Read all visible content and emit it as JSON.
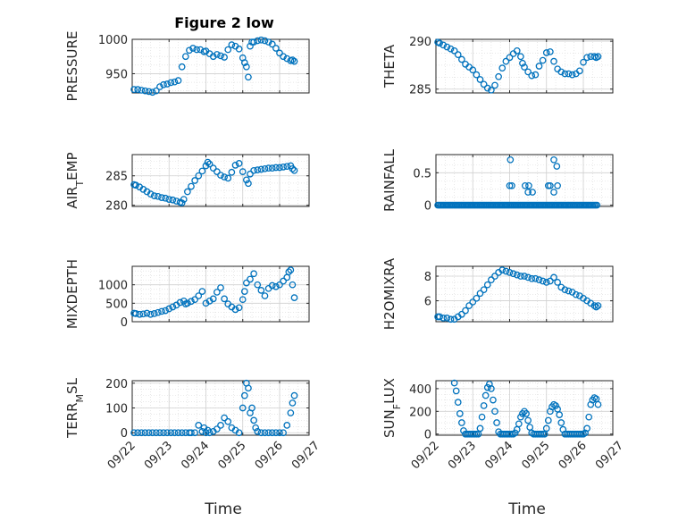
{
  "figure_title": "Figure 2 low",
  "marker_color": "#0072BD",
  "chart_data": [
    {
      "type": "scatter",
      "ylabel": "PRESSURE",
      "title": "Figure 2 low",
      "ylim": [
        922,
        1000
      ],
      "yticks": [
        950,
        1000
      ],
      "ytick_labels": [
        "950",
        "1000"
      ],
      "xlim": [
        0,
        4.8
      ],
      "x_unit": "days since 09/22 (tick dates shown only on bottom row)",
      "grid": "on (major + minor dotted)",
      "x": [
        0.05,
        0.15,
        0.25,
        0.35,
        0.45,
        0.55,
        0.65,
        0.75,
        0.85,
        0.95,
        1.05,
        1.15,
        1.25,
        1.35,
        1.45,
        1.55,
        1.65,
        1.75,
        1.85,
        1.95,
        2.0,
        2.1,
        2.2,
        2.3,
        2.4,
        2.5,
        2.6,
        2.7,
        2.8,
        2.9,
        3.0,
        3.05,
        3.1,
        3.15,
        3.2,
        3.25,
        3.3,
        3.4,
        3.5,
        3.6,
        3.7,
        3.8,
        3.9,
        4.0,
        4.1,
        4.2,
        4.3,
        4.35,
        4.4
      ],
      "y": [
        927,
        927,
        926,
        925,
        924,
        923,
        925,
        931,
        934,
        935,
        937,
        938,
        940,
        960,
        975,
        984,
        987,
        985,
        985,
        982,
        983,
        979,
        975,
        978,
        976,
        974,
        985,
        992,
        990,
        986,
        973,
        966,
        960,
        945,
        990,
        996,
        996,
        998,
        999,
        998,
        996,
        993,
        987,
        980,
        975,
        972,
        969,
        970,
        968
      ]
    },
    {
      "type": "scatter",
      "ylabel": "THETA",
      "ylim": [
        284.6,
        290.2
      ],
      "yticks": [
        285,
        290
      ],
      "ytick_labels": [
        "285",
        "290"
      ],
      "xlim": [
        0,
        4.8
      ],
      "x": [
        0.05,
        0.1,
        0.2,
        0.3,
        0.4,
        0.5,
        0.6,
        0.7,
        0.8,
        0.9,
        1.0,
        1.1,
        1.2,
        1.3,
        1.4,
        1.5,
        1.6,
        1.7,
        1.8,
        1.9,
        2.0,
        2.1,
        2.2,
        2.3,
        2.35,
        2.4,
        2.5,
        2.6,
        2.7,
        2.8,
        2.9,
        3.0,
        3.1,
        3.2,
        3.3,
        3.4,
        3.5,
        3.6,
        3.7,
        3.8,
        3.9,
        4.0,
        4.1,
        4.2,
        4.3,
        4.35,
        4.4
      ],
      "y": [
        289.9,
        289.8,
        289.6,
        289.4,
        289.2,
        289.0,
        288.6,
        288.1,
        287.6,
        287.3,
        287.0,
        286.5,
        286.0,
        285.5,
        285.1,
        284.9,
        285.4,
        286.3,
        287.2,
        287.9,
        288.3,
        288.7,
        289.0,
        288.4,
        287.7,
        287.3,
        286.8,
        286.4,
        286.5,
        287.4,
        288.0,
        288.8,
        288.9,
        287.9,
        287.1,
        286.8,
        286.6,
        286.6,
        286.5,
        286.6,
        286.9,
        287.8,
        288.3,
        288.4,
        288.4,
        288.3,
        288.4
      ]
    },
    {
      "type": "scatter",
      "ylabel": "AIR_TEMP",
      "ylim": [
        279.8,
        288.6
      ],
      "yticks": [
        280,
        285
      ],
      "ytick_labels": [
        "280",
        "285"
      ],
      "xlim": [
        0,
        4.8
      ],
      "x": [
        0.05,
        0.1,
        0.2,
        0.3,
        0.4,
        0.5,
        0.6,
        0.7,
        0.8,
        0.9,
        1.0,
        1.1,
        1.2,
        1.3,
        1.35,
        1.4,
        1.5,
        1.6,
        1.7,
        1.8,
        1.9,
        2.0,
        2.05,
        2.1,
        2.2,
        2.3,
        2.4,
        2.5,
        2.6,
        2.7,
        2.8,
        2.9,
        3.0,
        3.1,
        3.15,
        3.2,
        3.3,
        3.4,
        3.5,
        3.6,
        3.7,
        3.8,
        3.9,
        4.0,
        4.1,
        4.2,
        4.3,
        4.35,
        4.4
      ],
      "y": [
        283.5,
        283.4,
        283.1,
        282.7,
        282.3,
        281.9,
        281.6,
        281.5,
        281.3,
        281.2,
        281.0,
        280.9,
        280.7,
        280.5,
        280.4,
        281.0,
        282.3,
        283.2,
        284.2,
        285.0,
        285.8,
        286.7,
        287.3,
        287.0,
        286.3,
        285.7,
        285.1,
        284.8,
        284.6,
        285.6,
        286.8,
        287.1,
        285.7,
        284.3,
        283.7,
        285.3,
        285.9,
        286.0,
        286.1,
        286.2,
        286.3,
        286.3,
        286.4,
        286.4,
        286.5,
        286.6,
        286.7,
        286.2,
        285.9
      ]
    },
    {
      "type": "scatter",
      "ylabel": "RAINFALL",
      "ylim": [
        -0.02,
        0.78
      ],
      "yticks": [
        0,
        0.5
      ],
      "ytick_labels": [
        "0",
        "0.5"
      ],
      "xlim": [
        0,
        4.8
      ],
      "x_zero_range": [
        0.05,
        4.4
      ],
      "nonzero": [
        {
          "x": 2.02,
          "y": 0.7
        },
        {
          "x": 2.0,
          "y": 0.3
        },
        {
          "x": 2.06,
          "y": 0.3
        },
        {
          "x": 2.42,
          "y": 0.3
        },
        {
          "x": 2.5,
          "y": 0.2
        },
        {
          "x": 2.52,
          "y": 0.3
        },
        {
          "x": 2.62,
          "y": 0.2
        },
        {
          "x": 3.05,
          "y": 0.3
        },
        {
          "x": 3.1,
          "y": 0.3
        },
        {
          "x": 3.2,
          "y": 0.7
        },
        {
          "x": 3.28,
          "y": 0.6
        },
        {
          "x": 3.3,
          "y": 0.3
        },
        {
          "x": 3.2,
          "y": 0.2
        }
      ]
    },
    {
      "type": "scatter",
      "ylabel": "MIXDEPTH",
      "ylim": [
        0,
        1500
      ],
      "yticks": [
        0,
        500,
        1000
      ],
      "ytick_labels": [
        "0",
        "500",
        "1000"
      ],
      "xlim": [
        0,
        4.8
      ],
      "x": [
        0.05,
        0.1,
        0.2,
        0.3,
        0.4,
        0.5,
        0.6,
        0.7,
        0.8,
        0.9,
        1.0,
        1.1,
        1.2,
        1.3,
        1.4,
        1.45,
        1.5,
        1.6,
        1.7,
        1.8,
        1.9,
        2.0,
        2.1,
        2.2,
        2.3,
        2.4,
        2.5,
        2.6,
        2.7,
        2.8,
        2.9,
        3.0,
        3.05,
        3.1,
        3.2,
        3.3,
        3.4,
        3.5,
        3.6,
        3.7,
        3.8,
        3.9,
        4.0,
        4.1,
        4.2,
        4.25,
        4.3,
        4.35,
        4.4
      ],
      "y": [
        230,
        220,
        200,
        210,
        230,
        200,
        220,
        250,
        280,
        300,
        350,
        400,
        450,
        520,
        560,
        480,
        500,
        550,
        600,
        700,
        820,
        500,
        560,
        620,
        800,
        920,
        620,
        480,
        400,
        330,
        380,
        600,
        820,
        1050,
        1150,
        1300,
        1000,
        850,
        700,
        900,
        980,
        950,
        1000,
        1100,
        1200,
        1350,
        1400,
        1000,
        650
      ]
    },
    {
      "type": "scatter",
      "ylabel": "H2OMIXRA",
      "ylim": [
        4.3,
        8.8
      ],
      "yticks": [
        6,
        8
      ],
      "ytick_labels": [
        "6",
        "8"
      ],
      "xlim": [
        0,
        4.8
      ],
      "x": [
        0.05,
        0.1,
        0.2,
        0.3,
        0.4,
        0.5,
        0.6,
        0.7,
        0.8,
        0.9,
        1.0,
        1.1,
        1.2,
        1.3,
        1.4,
        1.5,
        1.6,
        1.7,
        1.8,
        1.9,
        2.0,
        2.1,
        2.2,
        2.3,
        2.4,
        2.5,
        2.6,
        2.7,
        2.8,
        2.9,
        3.0,
        3.1,
        3.2,
        3.3,
        3.4,
        3.5,
        3.6,
        3.7,
        3.8,
        3.9,
        4.0,
        4.1,
        4.2,
        4.3,
        4.35,
        4.4
      ],
      "y": [
        4.7,
        4.7,
        4.6,
        4.6,
        4.5,
        4.5,
        4.7,
        4.9,
        5.2,
        5.6,
        5.9,
        6.2,
        6.6,
        6.9,
        7.3,
        7.7,
        8.0,
        8.3,
        8.5,
        8.4,
        8.3,
        8.2,
        8.1,
        8.0,
        8.0,
        7.9,
        7.8,
        7.8,
        7.7,
        7.6,
        7.5,
        7.6,
        7.9,
        7.5,
        7.1,
        6.9,
        6.8,
        6.7,
        6.5,
        6.4,
        6.2,
        6.0,
        5.8,
        5.6,
        5.5,
        5.6
      ]
    },
    {
      "type": "scatter",
      "ylabel": "TERR_MSL",
      "ylim": [
        -10,
        210
      ],
      "yticks": [
        0,
        100,
        200
      ],
      "ytick_labels": [
        "0",
        "100",
        "200"
      ],
      "xlim": [
        0,
        4.8
      ],
      "x": [
        0.05,
        0.15,
        0.25,
        0.35,
        0.45,
        0.55,
        0.65,
        0.75,
        0.85,
        0.95,
        1.05,
        1.15,
        1.25,
        1.35,
        1.45,
        1.55,
        1.6,
        1.7,
        1.8,
        1.9,
        1.95,
        2.0,
        2.05,
        2.1,
        2.2,
        2.3,
        2.4,
        2.5,
        2.6,
        2.7,
        2.8,
        2.9,
        3.0,
        3.05,
        3.1,
        3.15,
        3.2,
        3.25,
        3.3,
        3.35,
        3.4,
        3.5,
        3.6,
        3.7,
        3.8,
        3.9,
        4.0,
        4.1,
        4.2,
        4.3,
        4.35,
        4.4
      ],
      "y": [
        0,
        0,
        0,
        0,
        0,
        0,
        0,
        0,
        0,
        0,
        0,
        0,
        0,
        0,
        0,
        0,
        0,
        0,
        30,
        5,
        20,
        0,
        10,
        0,
        5,
        15,
        30,
        60,
        45,
        20,
        10,
        0,
        100,
        150,
        200,
        180,
        80,
        100,
        50,
        20,
        5,
        0,
        0,
        0,
        0,
        0,
        0,
        0,
        30,
        80,
        120,
        150
      ]
    },
    {
      "type": "scatter",
      "ylabel": "SUN_FLUX",
      "ylim": [
        -10,
        470
      ],
      "yticks": [
        0,
        200,
        400
      ],
      "ytick_labels": [
        "0",
        "200",
        "400"
      ],
      "xlim": [
        0,
        4.8
      ],
      "x": [
        0.5,
        0.55,
        0.6,
        0.65,
        0.7,
        0.75,
        0.8,
        0.85,
        0.9,
        0.95,
        1.0,
        1.05,
        1.1,
        1.15,
        1.2,
        1.25,
        1.3,
        1.35,
        1.4,
        1.45,
        1.5,
        1.55,
        1.6,
        1.65,
        1.7,
        1.75,
        1.8,
        1.85,
        1.9,
        1.95,
        2.0,
        2.05,
        2.1,
        2.15,
        2.2,
        2.25,
        2.3,
        2.35,
        2.4,
        2.45,
        2.5,
        2.55,
        2.6,
        2.65,
        2.7,
        2.75,
        2.8,
        2.85,
        2.9,
        2.95,
        3.0,
        3.05,
        3.1,
        3.15,
        3.2,
        3.25,
        3.3,
        3.35,
        3.4,
        3.45,
        3.5,
        3.55,
        3.6,
        3.65,
        3.7,
        3.75,
        3.8,
        3.85,
        3.9,
        3.95,
        4.0,
        4.05,
        4.1,
        4.15,
        4.2,
        4.25,
        4.3,
        4.35,
        4.4
      ],
      "y": [
        450,
        380,
        280,
        180,
        100,
        30,
        0,
        0,
        0,
        0,
        0,
        0,
        0,
        0,
        50,
        150,
        250,
        340,
        410,
        440,
        400,
        300,
        200,
        100,
        20,
        0,
        0,
        0,
        0,
        0,
        0,
        0,
        0,
        10,
        40,
        90,
        150,
        180,
        200,
        180,
        120,
        60,
        10,
        0,
        0,
        0,
        0,
        0,
        0,
        0,
        50,
        120,
        200,
        240,
        260,
        250,
        220,
        170,
        100,
        40,
        0,
        0,
        0,
        0,
        0,
        0,
        0,
        0,
        0,
        0,
        0,
        10,
        50,
        150,
        260,
        300,
        320,
        310,
        260
      ]
    }
  ],
  "x_tick_labels": [
    "09/22",
    "09/23",
    "09/24",
    "09/25",
    "09/26",
    "09/27"
  ],
  "x_axis_label": "Time"
}
